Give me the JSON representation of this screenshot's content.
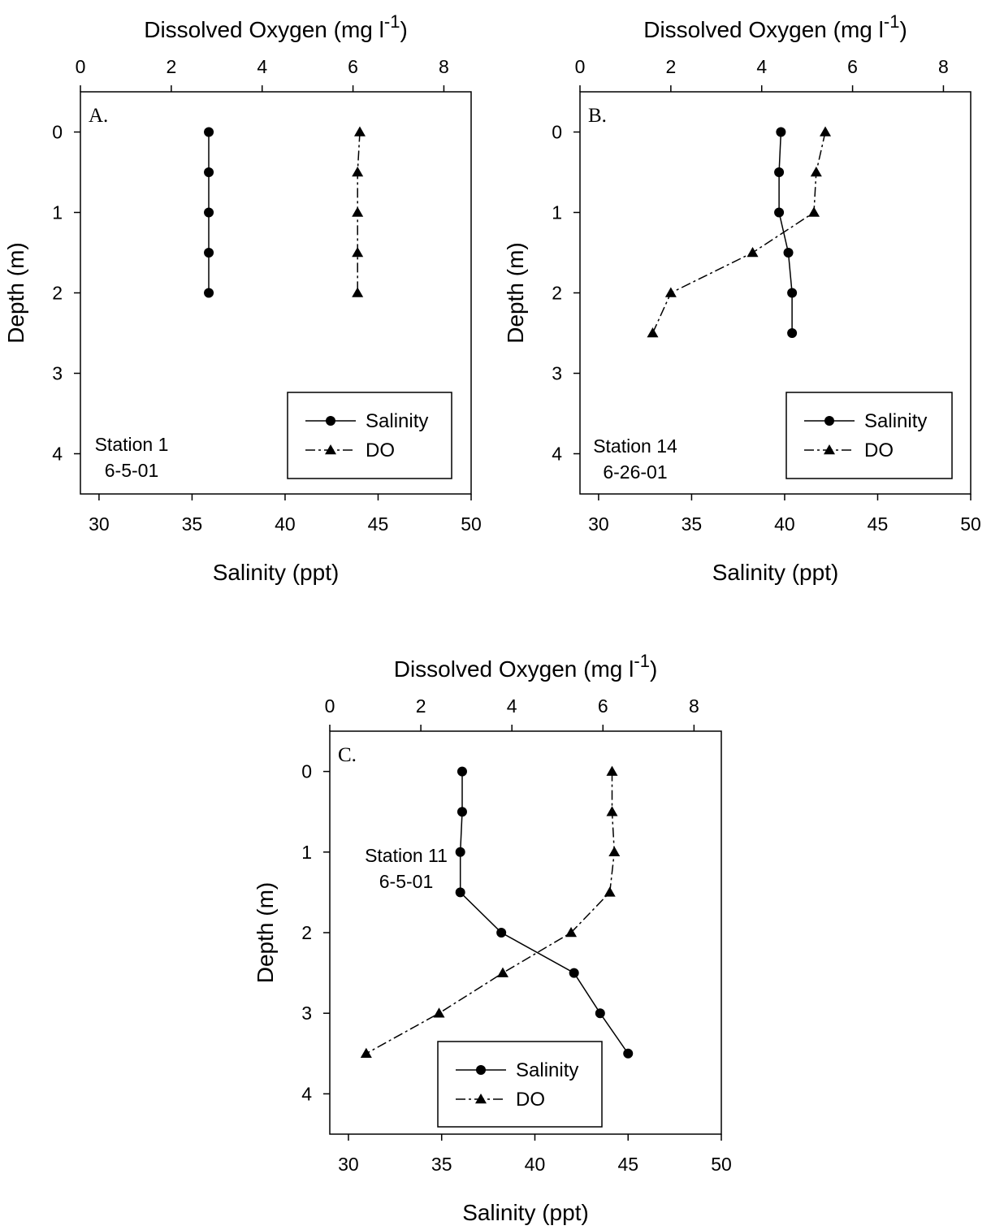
{
  "chart_data": [
    {
      "type": "line",
      "panel_label": "A.",
      "station": "Station 1",
      "date": "6-5-01",
      "title": "",
      "x_top_label_main": "Dissolved Oxygen (mg l",
      "x_top_label_sup": "-1",
      "x_top_label_end": ")",
      "x_bottom_label": "Salinity (ppt)",
      "y_label": "Depth (m)",
      "x_top_lim": [
        0,
        8.6
      ],
      "x_top_ticks": [
        "0",
        "2",
        "4",
        "6",
        "8"
      ],
      "x_bottom_lim": [
        29,
        50
      ],
      "x_bottom_ticks": [
        "30",
        "35",
        "40",
        "45",
        "50"
      ],
      "y_lim": [
        -0.5,
        4.5
      ],
      "y_ticks": [
        "0",
        "1",
        "2",
        "3",
        "4"
      ],
      "y_inverted": true,
      "legend_position": "bottom-right",
      "series": [
        {
          "name": "Salinity",
          "axis": "bottom",
          "marker": "circle",
          "line": "solid",
          "depth": [
            0,
            0.5,
            1,
            1.5,
            2
          ],
          "values": [
            35.9,
            35.9,
            35.9,
            35.9,
            35.9
          ]
        },
        {
          "name": "DO",
          "axis": "top",
          "marker": "triangle",
          "line": "dash-dot",
          "depth": [
            0,
            0.5,
            1,
            1.5,
            2
          ],
          "values": [
            6.15,
            6.1,
            6.1,
            6.1,
            6.1
          ]
        }
      ]
    },
    {
      "type": "line",
      "panel_label": "B.",
      "station": "Station 14",
      "date": "6-26-01",
      "title": "",
      "x_top_label_main": "Dissolved Oxygen (mg l",
      "x_top_label_sup": "-1",
      "x_top_label_end": ")",
      "x_bottom_label": "Salinity (ppt)",
      "y_label": "Depth (m)",
      "x_top_lim": [
        0,
        8.6
      ],
      "x_top_ticks": [
        "0",
        "2",
        "4",
        "6",
        "8"
      ],
      "x_bottom_lim": [
        29,
        50
      ],
      "x_bottom_ticks": [
        "30",
        "35",
        "40",
        "45",
        "50"
      ],
      "y_lim": [
        -0.5,
        4.5
      ],
      "y_ticks": [
        "0",
        "1",
        "2",
        "3",
        "4"
      ],
      "y_inverted": true,
      "legend_position": "bottom-right",
      "series": [
        {
          "name": "Salinity",
          "axis": "bottom",
          "marker": "circle",
          "line": "solid",
          "depth": [
            0,
            0.5,
            1,
            1.5,
            2,
            2.5
          ],
          "values": [
            39.8,
            39.7,
            39.7,
            40.2,
            40.4,
            40.4
          ]
        },
        {
          "name": "DO",
          "axis": "top",
          "marker": "triangle",
          "line": "dash-dot",
          "depth": [
            0,
            0.5,
            1,
            1.5,
            2,
            2.5
          ],
          "values": [
            5.4,
            5.2,
            5.15,
            3.8,
            2.0,
            1.6
          ]
        }
      ]
    },
    {
      "type": "line",
      "panel_label": "C.",
      "station": "Station 11",
      "date": "6-5-01",
      "title": "",
      "x_top_label_main": "Dissolved Oxygen (mg l",
      "x_top_label_sup": "-1",
      "x_top_label_end": ")",
      "x_bottom_label": "Salinity (ppt)",
      "y_label": "Depth (m)",
      "x_top_lim": [
        0,
        8.6
      ],
      "x_top_ticks": [
        "0",
        "2",
        "4",
        "6",
        "8"
      ],
      "x_bottom_lim": [
        29,
        50
      ],
      "x_bottom_ticks": [
        "30",
        "35",
        "40",
        "45",
        "50"
      ],
      "y_lim": [
        -0.5,
        4.5
      ],
      "y_ticks": [
        "0",
        "1",
        "2",
        "3",
        "4"
      ],
      "y_inverted": true,
      "legend_position": "bottom-center",
      "series": [
        {
          "name": "Salinity",
          "axis": "bottom",
          "marker": "circle",
          "line": "solid",
          "depth": [
            0,
            0.5,
            1,
            1.5,
            2,
            2.5,
            3,
            3.5
          ],
          "values": [
            36.1,
            36.1,
            36.0,
            36.0,
            38.2,
            42.1,
            43.5,
            45.0
          ]
        },
        {
          "name": "DO",
          "axis": "top",
          "marker": "triangle",
          "line": "dash-dot",
          "depth": [
            0,
            0.5,
            1,
            1.5,
            2,
            2.5,
            3,
            3.5
          ],
          "values": [
            6.2,
            6.2,
            6.25,
            6.15,
            5.3,
            3.8,
            2.4,
            0.8
          ]
        }
      ]
    }
  ]
}
